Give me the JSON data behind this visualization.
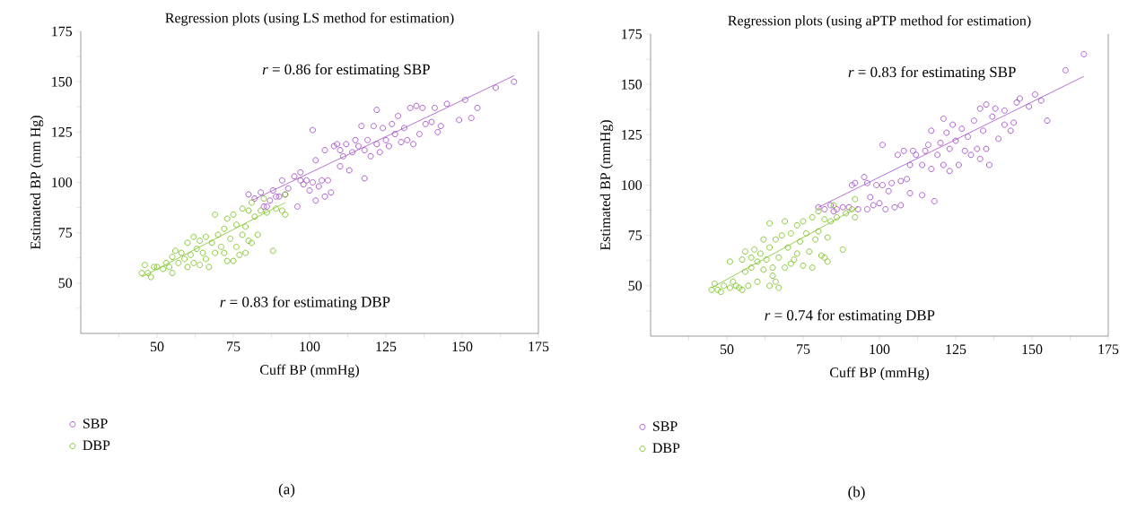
{
  "chart_data": [
    {
      "type": "scatter",
      "title": "Regression plots (using LS method for estimation)",
      "xlabel": "Cuff BP (mmHg)",
      "ylabel": "Estimated BP (mm Hg)",
      "xlim": [
        25,
        175
      ],
      "ylim": [
        25,
        175
      ],
      "xticks": [
        {
          "value": 37.5,
          "label": null
        },
        50,
        {
          "value": 62.5,
          "label": null
        },
        75,
        {
          "value": 87.5,
          "label": null
        },
        100,
        {
          "value": 112.5,
          "label": null
        },
        125,
        {
          "value": 137.5,
          "label": null
        },
        150,
        {
          "value": 162.5,
          "label": null
        },
        175
      ],
      "yticks": [
        {
          "value": 37.5,
          "label": null
        },
        50,
        {
          "value": 62.5,
          "label": null
        },
        75,
        {
          "value": 87.5,
          "label": null
        },
        100,
        {
          "value": 112.5,
          "label": null
        },
        125,
        {
          "value": 137.5,
          "label": null
        },
        150,
        {
          "value": 162.5,
          "label": null
        },
        175
      ],
      "legend": "bottom left",
      "annotations": [
        "*r* = 0.86 for estimating SBP",
        "*r* = 0.83 for estimating DBP",
        "(a)"
      ],
      "series": [
        {
          "name": "SBP",
          "marker": "circle",
          "color": "#a54ec8",
          "x": [
            80,
            82,
            84,
            85,
            86,
            87,
            88,
            89,
            90,
            91,
            92,
            93,
            95,
            96,
            97,
            97,
            98,
            99,
            100,
            101,
            101,
            102,
            102,
            103,
            104,
            105,
            105,
            106,
            107,
            108,
            109,
            110,
            110,
            111,
            112,
            113,
            114,
            115,
            116,
            117,
            118,
            118,
            119,
            120,
            121,
            122,
            122,
            123,
            124,
            125,
            126,
            127,
            128,
            129,
            130,
            131,
            132,
            133,
            134,
            135,
            136,
            137,
            138,
            140,
            141,
            142,
            143,
            145,
            149,
            151,
            153,
            155,
            161,
            167
          ],
          "values": [
            94,
            92,
            95,
            88,
            88,
            91,
            96,
            93,
            93,
            101,
            94,
            97,
            103,
            88,
            101,
            105,
            99,
            101,
            96,
            100,
            126,
            91,
            111,
            98,
            101,
            93,
            116,
            101,
            95,
            118,
            119,
            108,
            116,
            113,
            119,
            106,
            115,
            121,
            118,
            128,
            102,
            116,
            121,
            113,
            128,
            136,
            119,
            115,
            127,
            121,
            118,
            129,
            124,
            133,
            120,
            127,
            121,
            137,
            119,
            138,
            124,
            137,
            129,
            130,
            137,
            125,
            128,
            139,
            131,
            141,
            132,
            137,
            147,
            150
          ]
        },
        {
          "name": "DBP",
          "marker": "circle",
          "color": "#7cc424",
          "x": [
            45,
            46,
            47,
            48,
            49,
            50,
            52,
            53,
            54,
            55,
            55,
            56,
            57,
            58,
            59,
            60,
            60,
            61,
            62,
            62,
            63,
            64,
            64,
            65,
            66,
            66,
            67,
            68,
            69,
            69,
            70,
            71,
            72,
            72,
            73,
            73,
            74,
            75,
            75,
            76,
            76,
            77,
            78,
            78,
            79,
            79,
            80,
            80,
            81,
            81,
            82,
            83,
            84,
            85,
            86,
            88,
            89,
            91,
            92,
            92
          ],
          "values": [
            55,
            59,
            55,
            53,
            58,
            58,
            57,
            60,
            58,
            55,
            63,
            66,
            60,
            65,
            62,
            70,
            58,
            64,
            73,
            60,
            67,
            59,
            71,
            65,
            73,
            62,
            58,
            70,
            84,
            65,
            74,
            68,
            77,
            65,
            82,
            61,
            72,
            84,
            61,
            79,
            68,
            64,
            87,
            74,
            78,
            65,
            86,
            71,
            90,
            70,
            83,
            74,
            86,
            92,
            85,
            66,
            87,
            86,
            94,
            84
          ]
        },
        {
          "type": "line",
          "color": "#a54ec8",
          "x": [
            81,
            167
          ],
          "values": [
            91,
            153
          ]
        },
        {
          "type": "line",
          "color": "#7cc424",
          "x": [
            45,
            92
          ],
          "values": [
            53,
            90
          ]
        }
      ]
    },
    {
      "type": "scatter",
      "title": "Regression plots (using aPTP method for estimation)",
      "xlabel": "Cuff BP (mmHg)",
      "ylabel": "Estimated BP (mmHg)",
      "xlim": [
        25,
        175
      ],
      "ylim": [
        25,
        175
      ],
      "xticks": [
        {
          "value": 37.5,
          "label": null
        },
        50,
        {
          "value": 62.5,
          "label": null
        },
        75,
        {
          "value": 87.5,
          "label": null
        },
        100,
        {
          "value": 112.5,
          "label": null
        },
        125,
        {
          "value": 137.5,
          "label": null
        },
        150,
        {
          "value": 162.5,
          "label": null
        },
        175
      ],
      "yticks": [
        {
          "value": 37.5,
          "label": null
        },
        50,
        {
          "value": 62.5,
          "label": null
        },
        75,
        {
          "value": 87.5,
          "label": null
        },
        100,
        {
          "value": 112.5,
          "label": null
        },
        125,
        {
          "value": 137.5,
          "label": null
        },
        150,
        {
          "value": 162.5,
          "label": null
        },
        175
      ],
      "legend": "bottom left",
      "annotations": [
        "*r* = 0.83 for estimating SBP",
        "*r* = 0.74 for estimating DBP",
        "(b)"
      ],
      "series": [
        {
          "name": "SBP",
          "marker": "circle",
          "color": "#a54ec8",
          "x": [
            80,
            82,
            84,
            85,
            86,
            88,
            90,
            91,
            92,
            93,
            95,
            96,
            96,
            97,
            98,
            99,
            100,
            101,
            101,
            102,
            103,
            104,
            105,
            106,
            107,
            107,
            108,
            109,
            110,
            110,
            111,
            112,
            114,
            114,
            115,
            116,
            117,
            117,
            118,
            119,
            120,
            121,
            121,
            122,
            123,
            123,
            124,
            125,
            126,
            127,
            128,
            129,
            130,
            131,
            132,
            133,
            133,
            134,
            135,
            135,
            136,
            137,
            138,
            139,
            141,
            141,
            143,
            144,
            145,
            146,
            149,
            151,
            153,
            155,
            161,
            167
          ],
          "values": [
            89,
            88,
            90,
            87,
            88,
            89,
            89,
            100,
            101,
            88,
            104,
            101,
            88,
            94,
            90,
            100,
            91,
            120,
            100,
            88,
            97,
            101,
            89,
            115,
            90,
            102,
            117,
            103,
            96,
            110,
            117,
            115,
            95,
            110,
            117,
            120,
            108,
            127,
            92,
            115,
            121,
            110,
            133,
            126,
            107,
            118,
            130,
            122,
            110,
            128,
            117,
            124,
            115,
            132,
            118,
            113,
            138,
            127,
            140,
            118,
            110,
            134,
            138,
            123,
            137,
            130,
            127,
            131,
            141,
            143,
            139,
            145,
            142,
            132,
            157,
            165
          ]
        },
        {
          "name": "DBP",
          "marker": "circle",
          "color": "#7cc424",
          "x": [
            45,
            46,
            47,
            48,
            49,
            51,
            51,
            52,
            53,
            54,
            55,
            55,
            56,
            56,
            57,
            58,
            58,
            59,
            60,
            60,
            61,
            62,
            62,
            63,
            64,
            64,
            64,
            65,
            65,
            66,
            66,
            67,
            67,
            68,
            69,
            69,
            70,
            71,
            71,
            72,
            73,
            73,
            74,
            75,
            75,
            76,
            77,
            78,
            78,
            79,
            80,
            80,
            81,
            82,
            82,
            83,
            83,
            84,
            85,
            86,
            88,
            89,
            91,
            92,
            92
          ],
          "values": [
            48,
            51,
            48,
            47,
            50,
            62,
            49,
            52,
            50,
            49,
            63,
            48,
            67,
            57,
            50,
            64,
            59,
            68,
            52,
            62,
            66,
            73,
            58,
            63,
            50,
            81,
            69,
            55,
            59,
            73,
            52,
            49,
            64,
            75,
            82,
            59,
            69,
            76,
            61,
            63,
            80,
            66,
            72,
            82,
            60,
            76,
            67,
            84,
            59,
            73,
            87,
            77,
            65,
            83,
            64,
            74,
            62,
            82,
            90,
            84,
            68,
            86,
            88,
            93,
            84
          ]
        },
        {
          "type": "line",
          "color": "#a54ec8",
          "x": [
            80,
            167
          ],
          "values": [
            89,
            154
          ]
        },
        {
          "type": "line",
          "color": "#7cc424",
          "x": [
            45,
            93
          ],
          "values": [
            49,
            89
          ]
        }
      ]
    }
  ]
}
